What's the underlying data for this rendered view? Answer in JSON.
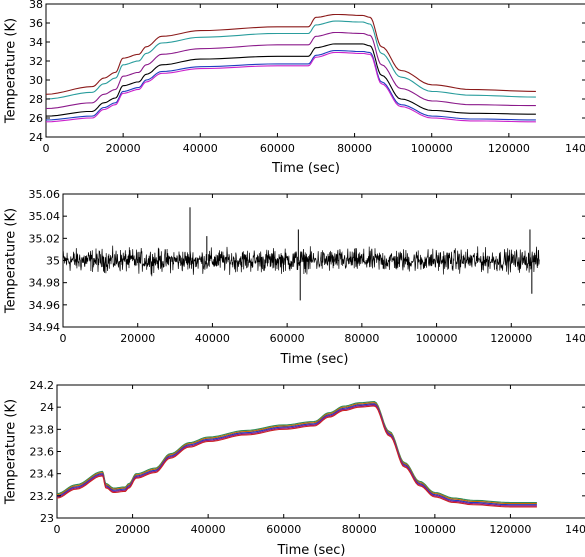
{
  "chart_data": [
    {
      "type": "line",
      "title": "",
      "xlabel": "Time (sec)",
      "ylabel": "Temperature (K)",
      "xlim": [
        0,
        140000
      ],
      "ylim": [
        24,
        38
      ],
      "x_ticks": [
        "0",
        "20000",
        "40000",
        "60000",
        "80000",
        "100000",
        "120000",
        "140000"
      ],
      "y_ticks": [
        "24",
        "26",
        "28",
        "30",
        "32",
        "34",
        "36",
        "38"
      ],
      "grid": false,
      "series": [
        {
          "color": "#8b1a1a",
          "x": [
            0,
            12000,
            15000,
            18000,
            20000,
            24000,
            26000,
            30000,
            40000,
            60000,
            68000,
            70000,
            75000,
            82000,
            84000,
            87000,
            92000,
            100000,
            110000,
            127000
          ],
          "values": [
            28.5,
            29.3,
            30.2,
            30.8,
            32.3,
            32.7,
            33.5,
            34.6,
            35.2,
            35.6,
            35.6,
            36.6,
            36.9,
            36.8,
            36.6,
            33.5,
            31.0,
            29.5,
            29.0,
            28.8
          ]
        },
        {
          "color": "#2a9d9d",
          "x": [
            0,
            12000,
            15000,
            18000,
            20000,
            24000,
            26000,
            30000,
            40000,
            60000,
            68000,
            70000,
            75000,
            82000,
            84000,
            87000,
            92000,
            100000,
            110000,
            127000
          ],
          "values": [
            28.0,
            28.7,
            29.6,
            30.2,
            31.6,
            32.0,
            32.8,
            33.9,
            34.5,
            34.9,
            34.9,
            35.8,
            36.2,
            36.1,
            35.9,
            32.8,
            30.3,
            28.8,
            28.4,
            28.2
          ]
        },
        {
          "color": "#8b1a8b",
          "x": [
            0,
            12000,
            15000,
            18000,
            20000,
            24000,
            26000,
            30000,
            40000,
            60000,
            68000,
            70000,
            75000,
            82000,
            84000,
            87000,
            92000,
            100000,
            110000,
            127000
          ],
          "values": [
            27.0,
            27.6,
            28.5,
            29.0,
            30.4,
            30.8,
            31.6,
            32.7,
            33.3,
            33.7,
            33.7,
            34.6,
            35.0,
            34.9,
            34.7,
            31.6,
            29.1,
            27.8,
            27.4,
            27.3
          ]
        },
        {
          "color": "#000000",
          "x": [
            0,
            12000,
            15000,
            18000,
            20000,
            24000,
            26000,
            30000,
            40000,
            60000,
            68000,
            70000,
            75000,
            82000,
            84000,
            87000,
            92000,
            100000,
            110000,
            127000
          ],
          "values": [
            26.2,
            26.7,
            27.6,
            28.1,
            29.4,
            29.8,
            30.6,
            31.6,
            32.2,
            32.5,
            32.5,
            33.4,
            33.8,
            33.8,
            33.6,
            30.5,
            28.0,
            26.8,
            26.5,
            26.4
          ]
        },
        {
          "color": "#1f3fbf",
          "x": [
            0,
            12000,
            15000,
            18000,
            20000,
            24000,
            26000,
            30000,
            40000,
            60000,
            68000,
            70000,
            75000,
            82000,
            84000,
            87000,
            92000,
            100000,
            110000,
            127000
          ],
          "values": [
            25.8,
            26.2,
            27.1,
            27.6,
            28.8,
            29.2,
            30.0,
            30.9,
            31.4,
            31.7,
            31.7,
            32.6,
            33.1,
            33.0,
            32.9,
            29.8,
            27.4,
            26.2,
            25.9,
            25.8
          ]
        },
        {
          "color": "#cc22cc",
          "x": [
            0,
            12000,
            15000,
            18000,
            20000,
            24000,
            26000,
            30000,
            40000,
            60000,
            68000,
            70000,
            75000,
            82000,
            84000,
            87000,
            92000,
            100000,
            110000,
            127000
          ],
          "values": [
            25.6,
            26.0,
            26.9,
            27.4,
            28.6,
            29.0,
            29.8,
            30.7,
            31.2,
            31.5,
            31.5,
            32.4,
            32.9,
            32.8,
            32.7,
            29.6,
            27.2,
            26.0,
            25.7,
            25.6
          ]
        }
      ]
    },
    {
      "type": "line",
      "title": "",
      "xlabel": "Time (sec)",
      "ylabel": "Temperature (K)",
      "xlim": [
        0,
        140000
      ],
      "ylim": [
        34.94,
        35.06
      ],
      "x_ticks": [
        "0",
        "20000",
        "40000",
        "60000",
        "80000",
        "100000",
        "120000",
        "140000"
      ],
      "y_ticks": [
        "34.94",
        "34.96",
        "34.98",
        "35",
        "35.02",
        "35.04",
        "35.06"
      ],
      "grid": false,
      "series": [
        {
          "color": "#000000",
          "x_range": [
            0,
            127500
          ],
          "center": 35.0,
          "typical_band": [
            34.985,
            35.015
          ],
          "spikes": [
            {
              "x": 34000,
              "value": 35.048
            },
            {
              "x": 63500,
              "value": 34.964
            },
            {
              "x": 63000,
              "value": 35.028
            },
            {
              "x": 125000,
              "value": 35.028
            },
            {
              "x": 125500,
              "value": 34.97
            },
            {
              "x": 38500,
              "value": 35.022
            }
          ]
        }
      ]
    },
    {
      "type": "line",
      "title": "",
      "xlabel": "Time (sec)",
      "ylabel": "Temperature (K)",
      "xlim": [
        0,
        140000
      ],
      "ylim": [
        23,
        24.2
      ],
      "x_ticks": [
        "0",
        "20000",
        "40000",
        "60000",
        "80000",
        "100000",
        "120000",
        "140000"
      ],
      "y_ticks": [
        "23",
        "23.2",
        "23.4",
        "23.6",
        "23.8",
        "24",
        "24.2"
      ],
      "grid": false,
      "series": [
        {
          "color": "#2e8b57",
          "x": [
            0,
            5000,
            12000,
            13000,
            15000,
            18000,
            19000,
            21000,
            26000,
            30000,
            35000,
            40000,
            50000,
            60000,
            68000,
            72000,
            76000,
            80000,
            84000,
            88000,
            92000,
            96000,
            100000,
            105000,
            110000,
            120000,
            127000
          ],
          "values": [
            23.22,
            23.3,
            23.42,
            23.31,
            23.27,
            23.28,
            23.31,
            23.4,
            23.45,
            23.58,
            23.68,
            23.73,
            23.79,
            23.84,
            23.87,
            23.95,
            24.01,
            24.04,
            24.05,
            23.78,
            23.5,
            23.33,
            23.23,
            23.18,
            23.16,
            23.14,
            23.14
          ]
        },
        {
          "color": "#cc6600",
          "x": [
            0,
            5000,
            12000,
            13000,
            15000,
            18000,
            19000,
            21000,
            26000,
            30000,
            35000,
            40000,
            50000,
            60000,
            68000,
            72000,
            76000,
            80000,
            84000,
            88000,
            92000,
            96000,
            100000,
            105000,
            110000,
            120000,
            127000
          ],
          "values": [
            23.21,
            23.29,
            23.41,
            23.3,
            23.26,
            23.27,
            23.3,
            23.39,
            23.44,
            23.57,
            23.67,
            23.72,
            23.78,
            23.83,
            23.86,
            23.94,
            24.0,
            24.03,
            24.04,
            23.77,
            23.49,
            23.32,
            23.22,
            23.17,
            23.15,
            23.13,
            23.13
          ]
        },
        {
          "color": "#1f3fbf",
          "x": [
            0,
            5000,
            12000,
            13000,
            15000,
            18000,
            19000,
            21000,
            26000,
            30000,
            35000,
            40000,
            50000,
            60000,
            68000,
            72000,
            76000,
            80000,
            84000,
            88000,
            92000,
            96000,
            100000,
            105000,
            110000,
            120000,
            127000
          ],
          "values": [
            23.2,
            23.28,
            23.4,
            23.29,
            23.25,
            23.26,
            23.29,
            23.38,
            23.43,
            23.56,
            23.66,
            23.71,
            23.77,
            23.82,
            23.85,
            23.93,
            23.99,
            24.02,
            24.03,
            23.76,
            23.48,
            23.31,
            23.21,
            23.16,
            23.14,
            23.12,
            23.12
          ]
        },
        {
          "color": "#8b1a8b",
          "x": [
            0,
            5000,
            12000,
            13000,
            15000,
            18000,
            19000,
            21000,
            26000,
            30000,
            35000,
            40000,
            50000,
            60000,
            68000,
            72000,
            76000,
            80000,
            84000,
            88000,
            92000,
            96000,
            100000,
            105000,
            110000,
            120000,
            127000
          ],
          "values": [
            23.19,
            23.27,
            23.39,
            23.28,
            23.24,
            23.25,
            23.28,
            23.37,
            23.42,
            23.55,
            23.65,
            23.7,
            23.76,
            23.81,
            23.84,
            23.92,
            23.98,
            24.01,
            24.02,
            23.75,
            23.47,
            23.3,
            23.2,
            23.15,
            23.13,
            23.11,
            23.11
          ]
        },
        {
          "color": "#cc2222",
          "x": [
            0,
            5000,
            12000,
            13000,
            15000,
            18000,
            19000,
            21000,
            26000,
            30000,
            35000,
            40000,
            50000,
            60000,
            68000,
            72000,
            76000,
            80000,
            84000,
            88000,
            92000,
            96000,
            100000,
            105000,
            110000,
            120000,
            127000
          ],
          "values": [
            23.18,
            23.26,
            23.38,
            23.27,
            23.23,
            23.24,
            23.27,
            23.36,
            23.41,
            23.54,
            23.64,
            23.69,
            23.75,
            23.8,
            23.83,
            23.91,
            23.97,
            24.0,
            24.01,
            23.74,
            23.46,
            23.29,
            23.19,
            23.14,
            23.12,
            23.1,
            23.1
          ]
        }
      ]
    }
  ]
}
